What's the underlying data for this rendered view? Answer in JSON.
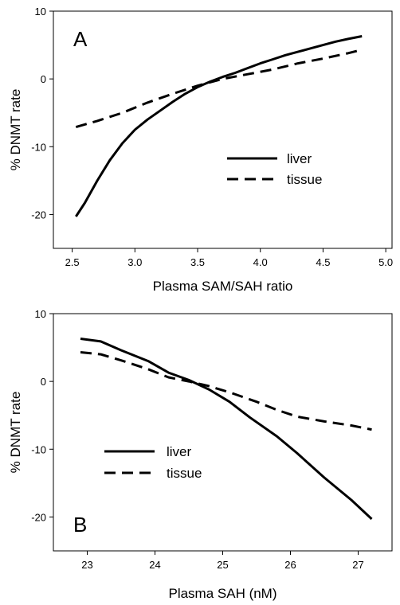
{
  "chart_data": [
    {
      "type": "line",
      "panel_label": "A",
      "xlabel": "Plasma SAM/SAH ratio",
      "ylabel": "% DNMT rate",
      "xlim": [
        2.35,
        5.05
      ],
      "ylim": [
        -25,
        10
      ],
      "xticks": [
        2.5,
        3.0,
        3.5,
        4.0,
        4.5,
        5.0
      ],
      "xtick_labels": [
        "2.5",
        "3.0",
        "3.5",
        "4.0",
        "4.5",
        "5.0"
      ],
      "yticks": [
        -20,
        -10,
        0,
        10
      ],
      "ytick_labels": [
        "-20",
        "-10",
        "0",
        "10"
      ],
      "legend_position": "middle-right",
      "series": [
        {
          "name": "liver",
          "style": "solid",
          "x": [
            2.53,
            2.6,
            2.7,
            2.8,
            2.9,
            3.0,
            3.1,
            3.2,
            3.3,
            3.4,
            3.5,
            3.6,
            3.7,
            3.8,
            3.9,
            4.0,
            4.1,
            4.2,
            4.3,
            4.4,
            4.5,
            4.6,
            4.7,
            4.81
          ],
          "y": [
            -20.3,
            -18.3,
            -15.0,
            -12.0,
            -9.5,
            -7.5,
            -6.0,
            -4.7,
            -3.4,
            -2.2,
            -1.2,
            -0.4,
            0.3,
            0.9,
            1.6,
            2.3,
            2.9,
            3.5,
            4.0,
            4.5,
            5.0,
            5.5,
            5.9,
            6.3
          ]
        },
        {
          "name": "tissue",
          "style": "dashed",
          "x": [
            2.53,
            2.7,
            2.9,
            3.1,
            3.3,
            3.5,
            3.7,
            3.9,
            4.1,
            4.3,
            4.5,
            4.7,
            4.81
          ],
          "y": [
            -7.1,
            -6.2,
            -5.0,
            -3.5,
            -2.2,
            -1.0,
            0.0,
            0.7,
            1.4,
            2.3,
            3.0,
            3.8,
            4.3
          ]
        }
      ]
    },
    {
      "type": "line",
      "panel_label": "B",
      "xlabel": "Plasma SAH (nM)",
      "ylabel": "% DNMT rate",
      "xlim": [
        22.5,
        27.5
      ],
      "ylim": [
        -25,
        10
      ],
      "xticks": [
        23,
        24,
        25,
        26,
        27
      ],
      "xtick_labels": [
        "23",
        "24",
        "25",
        "26",
        "27"
      ],
      "yticks": [
        -20,
        -10,
        0,
        10
      ],
      "ytick_labels": [
        "-20",
        "-10",
        "0",
        "10"
      ],
      "legend_position": "lower-left",
      "series": [
        {
          "name": "liver",
          "style": "solid",
          "x": [
            22.9,
            23.2,
            23.5,
            23.9,
            24.2,
            24.5,
            24.8,
            25.1,
            25.4,
            25.8,
            26.1,
            26.5,
            26.9,
            27.2
          ],
          "y": [
            6.3,
            5.9,
            4.6,
            3.0,
            1.3,
            0.2,
            -1.2,
            -3.0,
            -5.3,
            -8.1,
            -10.6,
            -14.2,
            -17.5,
            -20.3
          ]
        },
        {
          "name": "tissue",
          "style": "dashed",
          "x": [
            22.9,
            23.2,
            23.5,
            23.9,
            24.2,
            24.5,
            24.8,
            25.1,
            25.5,
            25.8,
            26.1,
            26.5,
            26.9,
            27.2
          ],
          "y": [
            4.3,
            4.0,
            3.1,
            1.8,
            0.6,
            0.0,
            -0.7,
            -1.6,
            -3.0,
            -4.2,
            -5.2,
            -5.9,
            -6.5,
            -7.1
          ]
        }
      ]
    }
  ]
}
